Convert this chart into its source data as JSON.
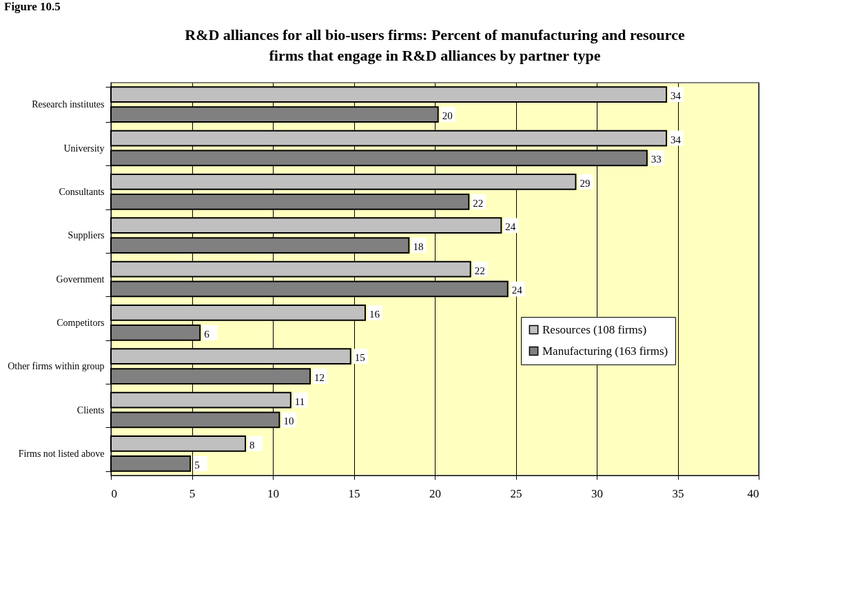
{
  "chart_data": {
    "type": "bar",
    "orientation": "horizontal",
    "title": "R&D alliances for all bio-users firms: Percent of manufacturing and resource firms that engage in R&D alliances by partner type",
    "annotations": [
      "Figure 10.5"
    ],
    "categories": [
      "Research institutes",
      "University",
      "Consultants",
      "Suppliers",
      "Government",
      "Competitors",
      "Other firms within group",
      "Clients",
      "Firms not listed above"
    ],
    "series": [
      {
        "name": "Resources (108 firms)",
        "color": "#c0c0c0",
        "values": [
          34.3,
          34.3,
          28.7,
          24.1,
          22.2,
          15.7,
          14.8,
          11.1,
          8.3
        ],
        "value_labels": [
          "34",
          "34",
          "29",
          "24",
          "22",
          "16",
          "15",
          "11",
          "8"
        ]
      },
      {
        "name": "Manufacturing (163 firms)",
        "color": "#808080",
        "values": [
          20.2,
          33.1,
          22.1,
          18.4,
          24.5,
          5.5,
          12.3,
          10.4,
          4.9
        ],
        "value_labels": [
          "20",
          "33",
          "22",
          "18",
          "24",
          "6",
          "12",
          "10",
          "5"
        ]
      }
    ],
    "xlim": [
      0,
      40
    ],
    "xticks": [
      0,
      5,
      10,
      15,
      20,
      25,
      30,
      35,
      40
    ],
    "grid": "x",
    "legend": "right"
  }
}
